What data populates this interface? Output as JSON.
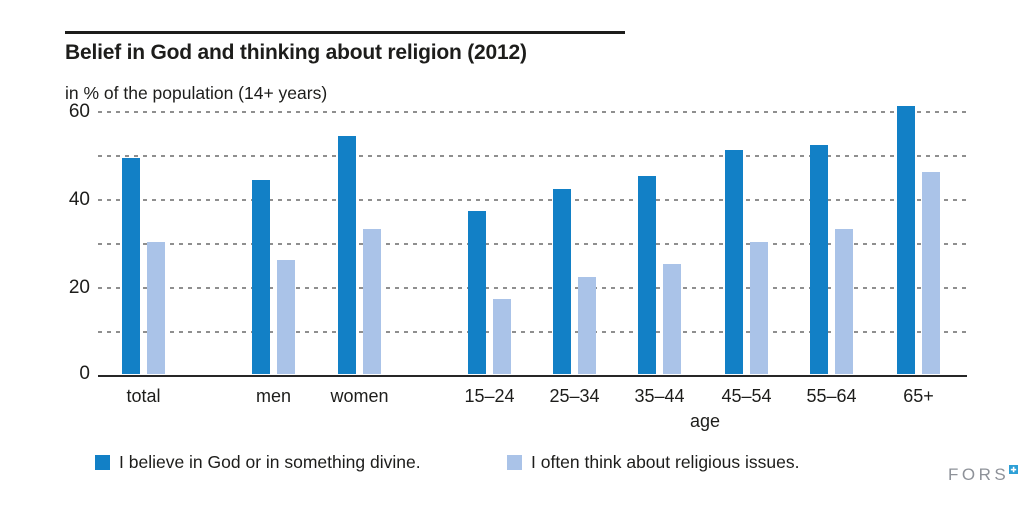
{
  "title": "Belief in God and thinking about religion (2012)",
  "subtitle": "in % of the population (14+ years)",
  "axis": {
    "y_ticks": [
      "60",
      "40",
      "20",
      "0"
    ],
    "x_label": "age"
  },
  "legend": [
    {
      "label": "I believe in God or in something divine.",
      "color": "#1280c6"
    },
    {
      "label": "I often think about religious issues.",
      "color": "#aac3e8"
    }
  ],
  "logo": {
    "text": "FORS",
    "mark_icon": "plus-square-icon",
    "mark_color": "#2d9fd6",
    "text_color": "#8e9299"
  },
  "colors": {
    "series_dark_blue": "#1280c6",
    "series_light_blue": "#aac3e8",
    "gridline_gray": "#8f8f8f",
    "axis_black": "#262626",
    "text_black": "#1d1d1b"
  },
  "chart_data": {
    "type": "bar",
    "title": "Belief in God and thinking about religion (2012)",
    "ylabel": "in % of the population (14+ years)",
    "xlabel": "age",
    "categories": [
      "total",
      "men",
      "women",
      "15–24",
      "25–34",
      "35–44",
      "45–54",
      "55–64",
      "65+"
    ],
    "series": [
      {
        "name": "I believe in God or in something divine.",
        "color": "#1280c6",
        "values": [
          49,
          44,
          54,
          37,
          42,
          45,
          51,
          52,
          61
        ]
      },
      {
        "name": "I often think about religious issues.",
        "color": "#aac3e8",
        "values": [
          30,
          26,
          33,
          17,
          22,
          25,
          30,
          33,
          46
        ]
      }
    ],
    "ylim": [
      0,
      60
    ],
    "y_gridline_step": 10,
    "grid": "horizontal-dotted",
    "labeled_y_ticks": [
      0,
      20,
      40,
      60
    ],
    "legend_position": "bottom"
  }
}
